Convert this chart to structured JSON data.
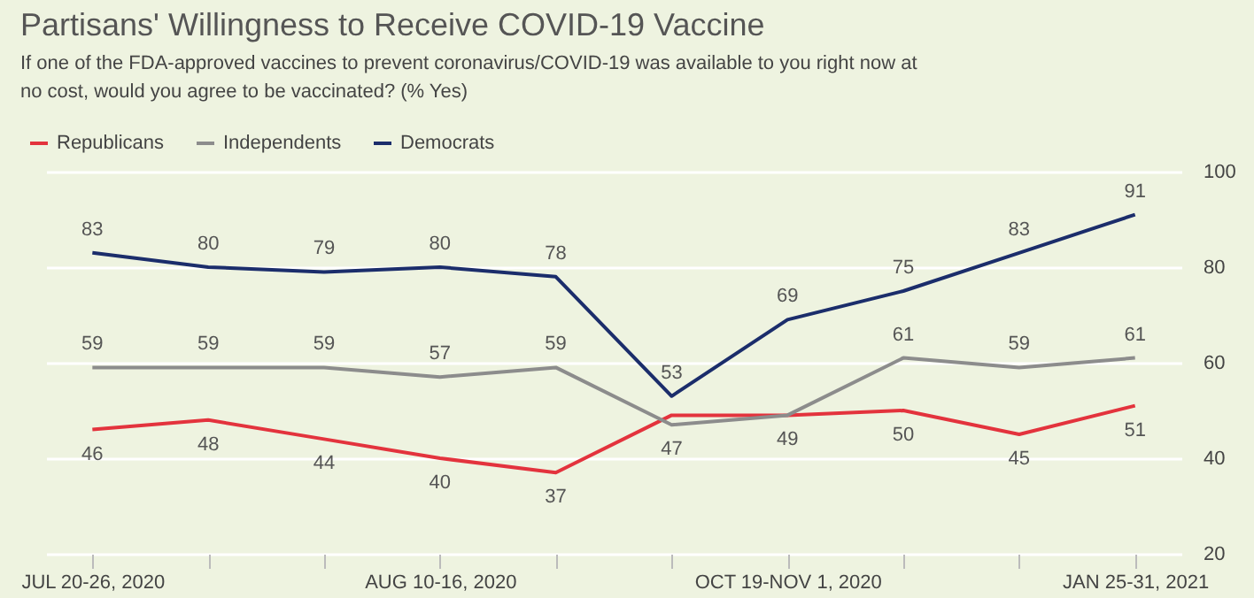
{
  "chart_data": {
    "type": "line",
    "title": "Partisans' Willingness to Receive COVID-19 Vaccine",
    "subtitle": "If one of the FDA-approved vaccines to prevent coronavirus/COVID-19 was available to you right now at no cost, would you agree to be vaccinated? (% Yes)",
    "categories": [
      "JUL 20-26, 2020",
      null,
      null,
      "AUG 10-16, 2020",
      null,
      null,
      "OCT 19-NOV 1, 2020",
      null,
      null,
      "JAN 25-31, 2021"
    ],
    "series": [
      {
        "name": "Republicans",
        "color": "#e3333d",
        "values": [
          46,
          48,
          44,
          40,
          37,
          49,
          49,
          50,
          45,
          51
        ],
        "value_labels": [
          "46",
          "48",
          "44",
          "40",
          "37",
          null,
          "49",
          "50",
          "45",
          "51"
        ]
      },
      {
        "name": "Independents",
        "color": "#8c8c8c",
        "values": [
          59,
          59,
          59,
          57,
          59,
          47,
          49,
          61,
          59,
          61
        ],
        "value_labels": [
          "59",
          "59",
          "59",
          "57",
          "59",
          "47",
          null,
          "61",
          "59",
          "61"
        ]
      },
      {
        "name": "Democrats",
        "color": "#1b2d6b",
        "values": [
          83,
          80,
          79,
          80,
          78,
          53,
          69,
          75,
          83,
          91
        ],
        "value_labels": [
          "83",
          "80",
          "79",
          "80",
          "78",
          "53",
          "69",
          "75",
          "83",
          "91"
        ]
      }
    ],
    "ylim": [
      20,
      100
    ],
    "yticks": [
      20,
      40,
      60,
      80,
      100
    ],
    "grid": "y",
    "legend": "top left",
    "line_style": "solid",
    "marker": "none"
  }
}
